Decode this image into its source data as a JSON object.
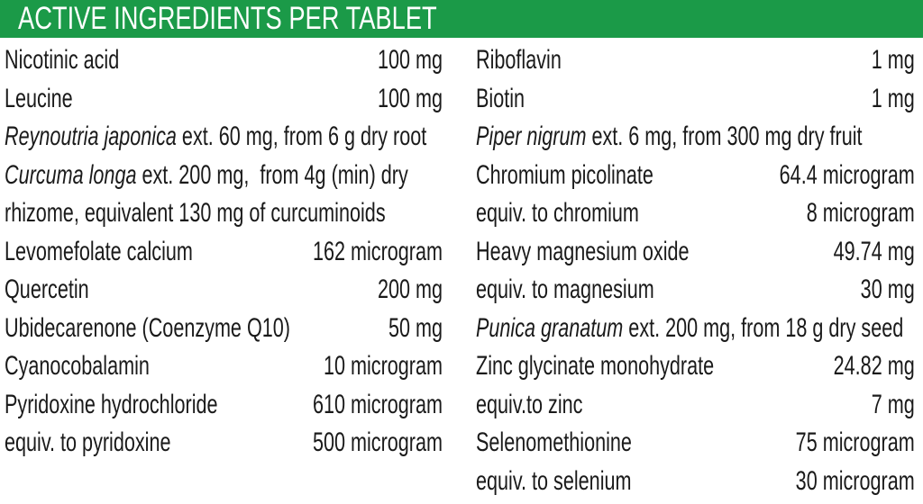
{
  "header": {
    "title": "ACTIVE INGREDIENTS PER TABLET",
    "background_color": "#1b9a48"
  },
  "left_column": [
    {
      "name": "Nicotinic acid",
      "amount": "100 mg"
    },
    {
      "name": "Leucine",
      "amount": "100 mg"
    },
    {
      "italic": "Reynoutria japonica",
      "name": " ext. 60 mg, from 6 g dry root",
      "amount": ""
    },
    {
      "italic": "Curcuma longa",
      "name": " ext. 200 mg,  from 4g (min) dry",
      "amount": ""
    },
    {
      "name": "rhizome, equivalent 130 mg of curcuminoids",
      "amount": ""
    },
    {
      "name": "Levomefolate calcium",
      "amount": "162 microgram"
    },
    {
      "name": "Quercetin",
      "amount": "200 mg"
    },
    {
      "name": "Ubidecarenone (Coenzyme Q10)",
      "amount": "50 mg"
    },
    {
      "name": "Cyanocobalamin",
      "amount": "10 microgram"
    },
    {
      "name": "Pyridoxine hydrochloride",
      "amount": "610 microgram"
    },
    {
      "name": "equiv. to pyridoxine",
      "amount": "500 microgram"
    }
  ],
  "right_column": [
    {
      "name": "Riboflavin",
      "amount": "1 mg"
    },
    {
      "name": "Biotin",
      "amount": "1 mg"
    },
    {
      "italic": "Piper nigrum",
      "name": " ext. 6 mg, from 300 mg dry fruit",
      "amount": ""
    },
    {
      "name": "Chromium picolinate",
      "amount": "64.4 microgram"
    },
    {
      "name": "equiv. to chromium",
      "amount": "8 microgram"
    },
    {
      "name": "Heavy magnesium oxide",
      "amount": "49.74 mg"
    },
    {
      "name": "equiv. to magnesium",
      "amount": "30 mg"
    },
    {
      "italic": "Punica granatum",
      "name": " ext. 200 mg, from 18 g dry seed",
      "amount": ""
    },
    {
      "name": "Zinc glycinate monohydrate",
      "amount": "24.82 mg"
    },
    {
      "name": "equiv.to zinc",
      "amount": "7 mg"
    },
    {
      "name": "Selenomethionine",
      "amount": "75 microgram"
    },
    {
      "name": "equiv. to selenium",
      "amount": "30 microgram"
    }
  ]
}
